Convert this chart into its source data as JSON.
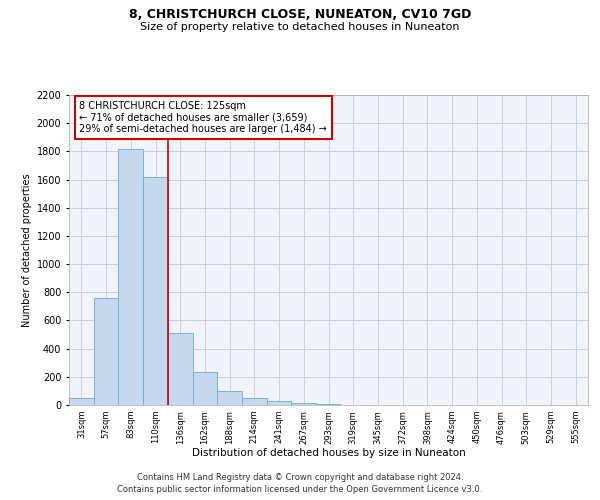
{
  "title": "8, CHRISTCHURCH CLOSE, NUNEATON, CV10 7GD",
  "subtitle": "Size of property relative to detached houses in Nuneaton",
  "xlabel": "Distribution of detached houses by size in Nuneaton",
  "ylabel": "Number of detached properties",
  "categories": [
    "31sqm",
    "57sqm",
    "83sqm",
    "110sqm",
    "136sqm",
    "162sqm",
    "188sqm",
    "214sqm",
    "241sqm",
    "267sqm",
    "293sqm",
    "319sqm",
    "345sqm",
    "372sqm",
    "398sqm",
    "424sqm",
    "450sqm",
    "476sqm",
    "503sqm",
    "529sqm",
    "555sqm"
  ],
  "values": [
    50,
    760,
    1820,
    1620,
    510,
    235,
    100,
    50,
    30,
    15,
    5,
    2,
    1,
    0,
    0,
    0,
    0,
    0,
    0,
    0,
    0
  ],
  "bar_color": "#c5d8ee",
  "bar_edge_color": "#6aaad4",
  "vline_x_index": 3.5,
  "vline_color": "#cc0000",
  "annotation_text": "8 CHRISTCHURCH CLOSE: 125sqm\n← 71% of detached houses are smaller (3,659)\n29% of semi-detached houses are larger (1,484) →",
  "annotation_box_color": "#ffffff",
  "annotation_box_edge_color": "#cc0000",
  "ylim": [
    0,
    2200
  ],
  "yticks": [
    0,
    200,
    400,
    600,
    800,
    1000,
    1200,
    1400,
    1600,
    1800,
    2000,
    2200
  ],
  "footnote1": "Contains HM Land Registry data © Crown copyright and database right 2024.",
  "footnote2": "Contains public sector information licensed under the Open Government Licence v3.0.",
  "bg_color": "#f0f4fa",
  "grid_color": "#c8d0e0",
  "title_fontsize": 9,
  "subtitle_fontsize": 8,
  "ylabel_fontsize": 7,
  "xlabel_fontsize": 7.5,
  "ytick_fontsize": 7,
  "xtick_fontsize": 6,
  "annot_fontsize": 7
}
